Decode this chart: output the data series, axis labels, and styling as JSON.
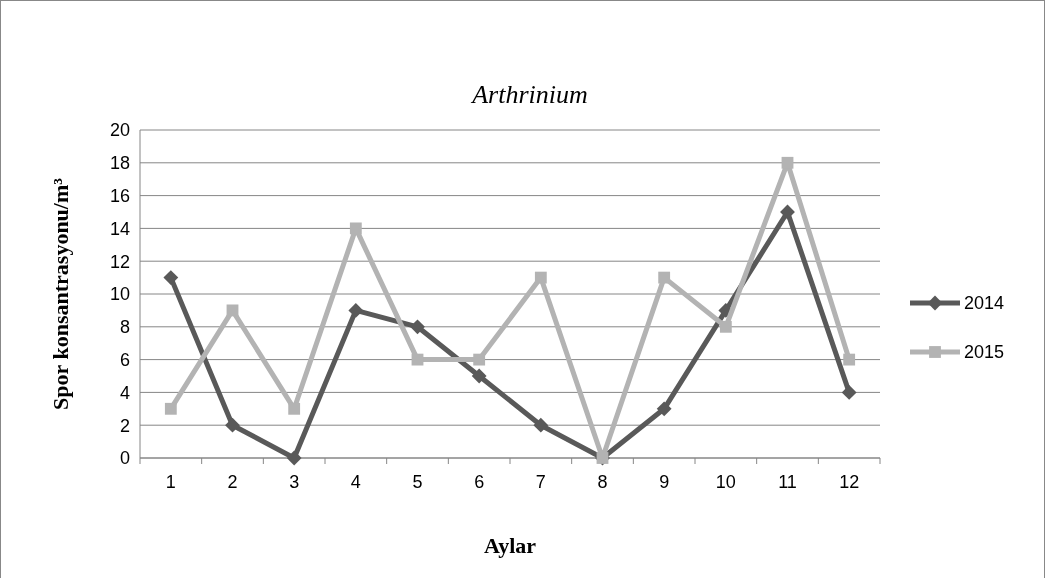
{
  "chart_data": {
    "type": "line",
    "title": "Arthrinium",
    "xlabel": "Aylar",
    "ylabel": "Spor konsantrasyonu/m³",
    "categories": [
      "1",
      "2",
      "3",
      "4",
      "5",
      "6",
      "7",
      "8",
      "9",
      "10",
      "11",
      "12"
    ],
    "series": [
      {
        "name": "2014",
        "color": "#595959",
        "marker": "diamond",
        "values": [
          11,
          2,
          0,
          9,
          8,
          5,
          2,
          0,
          3,
          9,
          15,
          4
        ]
      },
      {
        "name": "2015",
        "color": "#b3b3b3",
        "marker": "square",
        "values": [
          3,
          9,
          3,
          14,
          6,
          6,
          11,
          0,
          11,
          8,
          18,
          6
        ]
      }
    ],
    "ylim": [
      0,
      20
    ],
    "yticks": [
      0,
      2,
      4,
      6,
      8,
      10,
      12,
      14,
      16,
      18,
      20
    ],
    "grid": "y",
    "legend": "right",
    "line_style": "solid"
  }
}
